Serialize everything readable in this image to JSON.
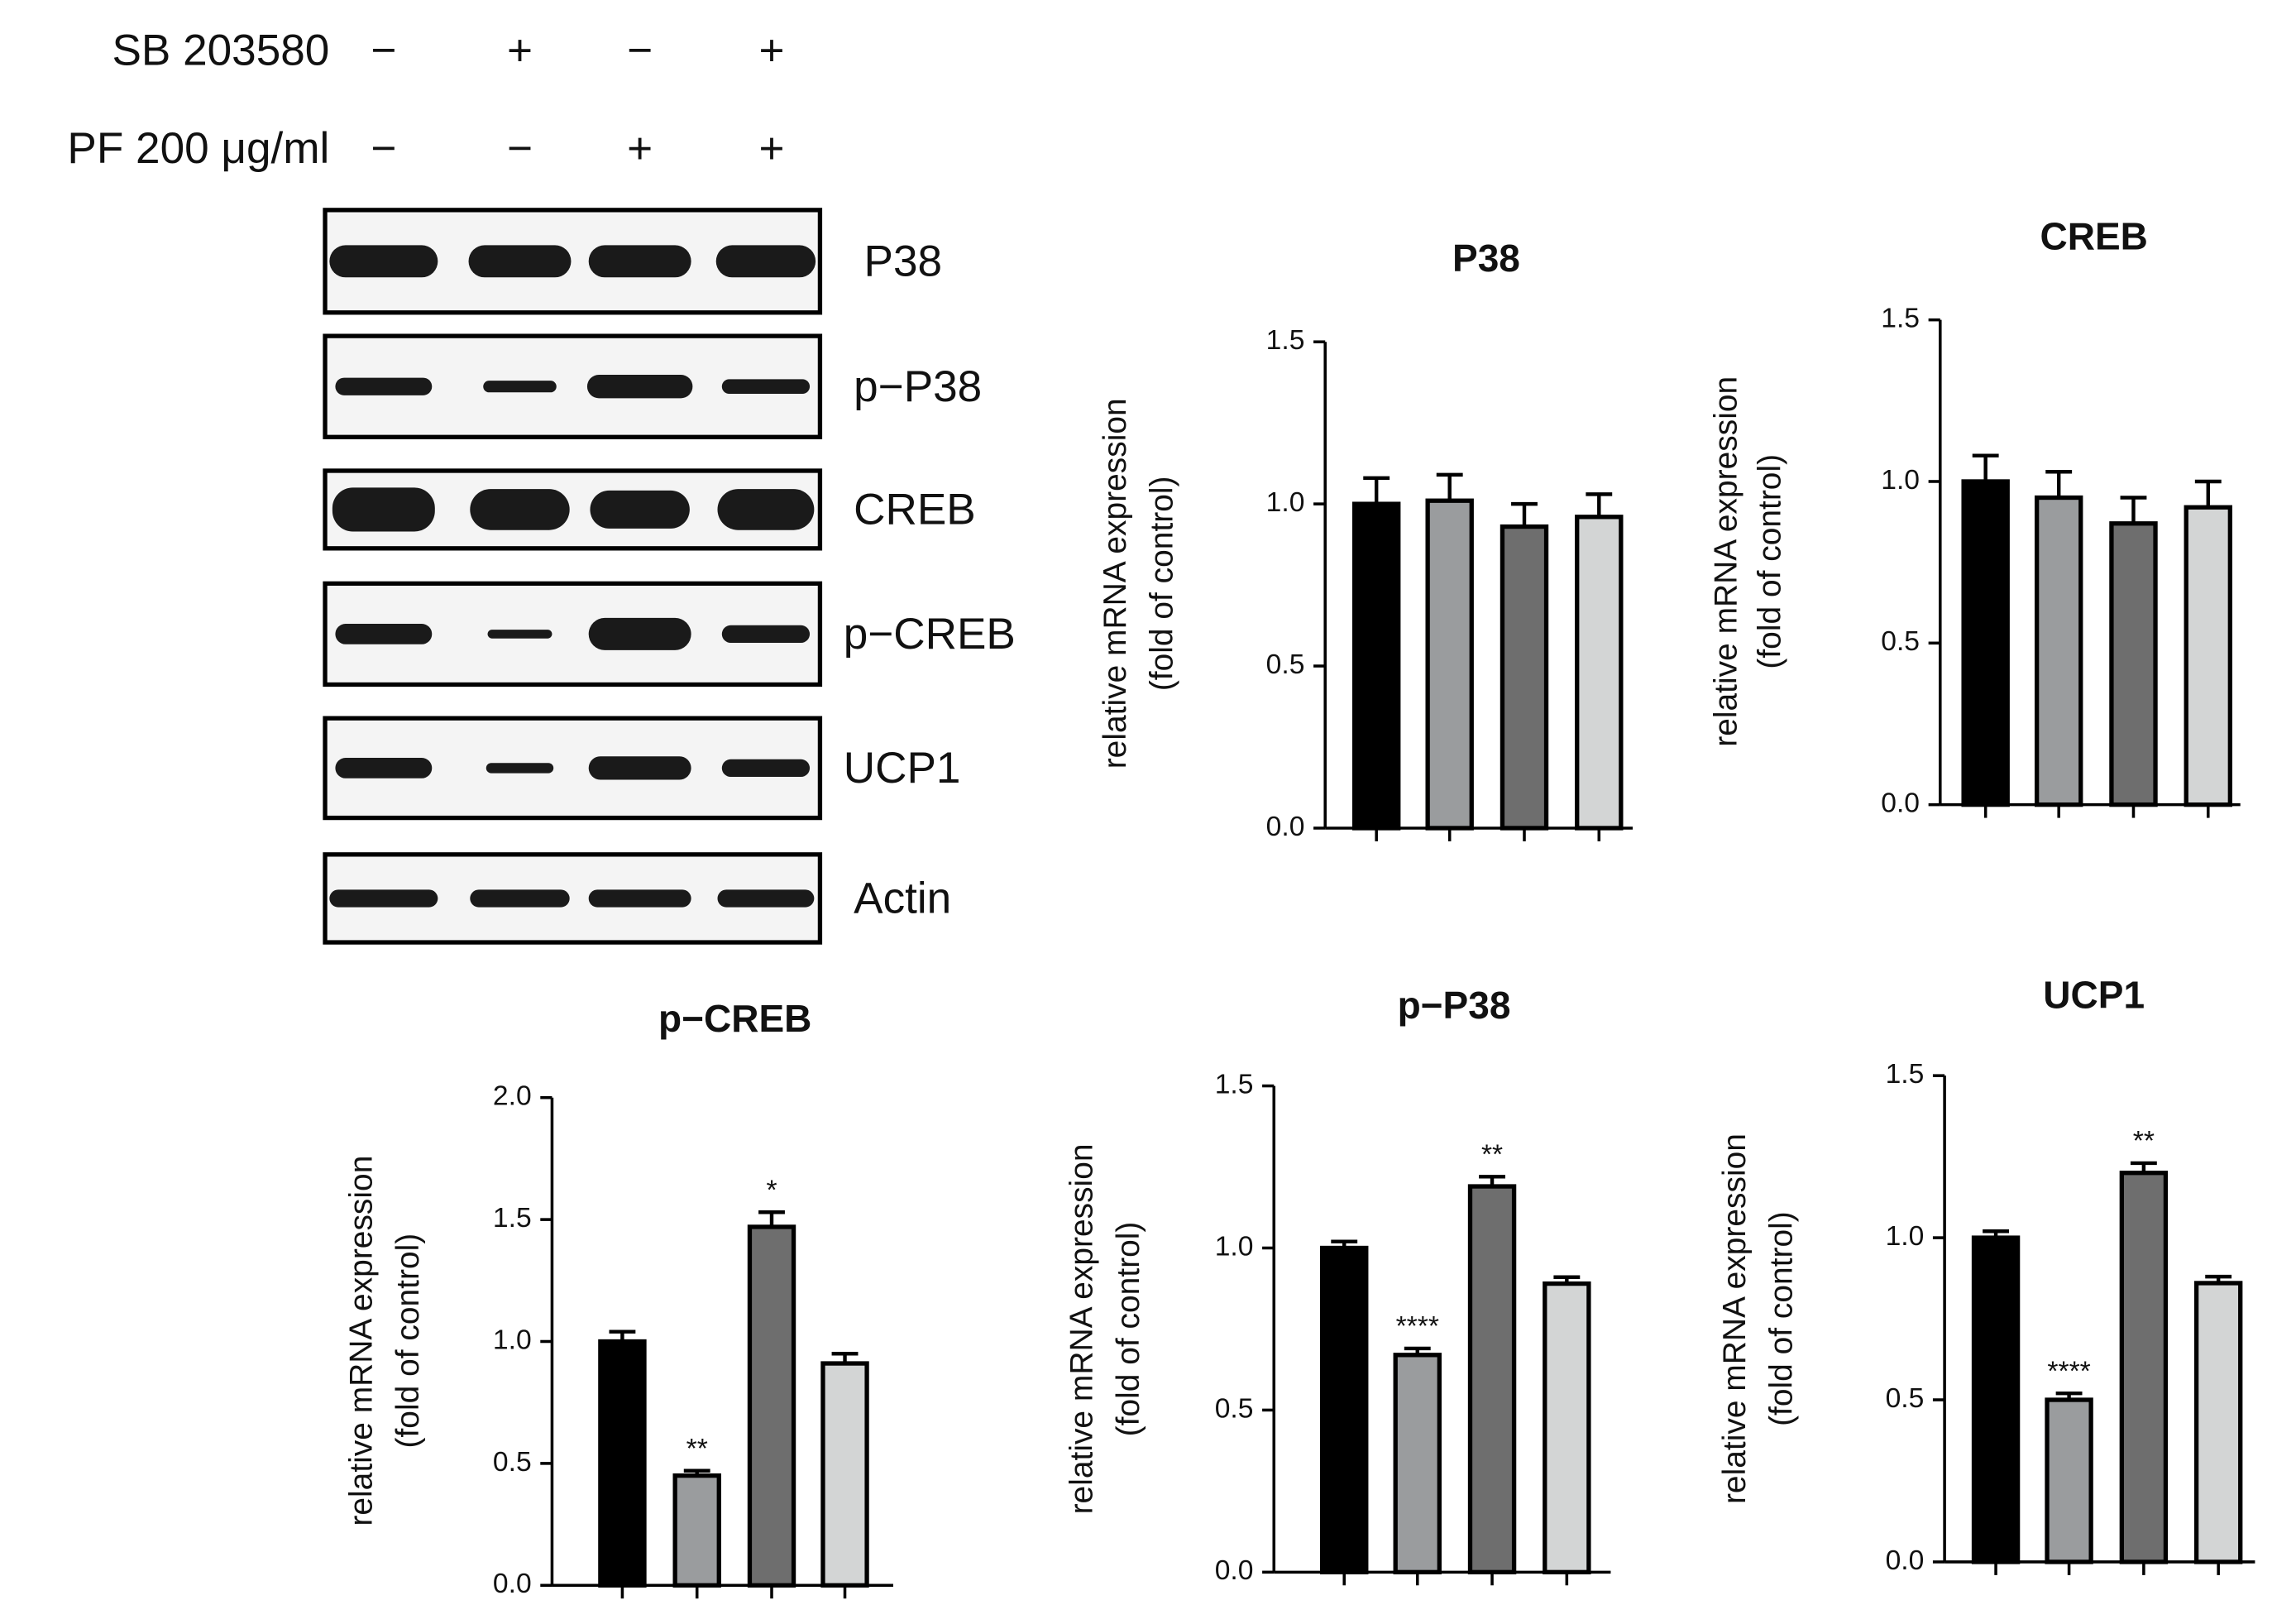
{
  "blot": {
    "treatments": [
      {
        "label": "SB 203580",
        "signs": [
          "−",
          "+",
          "−",
          "+"
        ]
      },
      {
        "label": "PF 200 μg/ml",
        "signs": [
          "−",
          "−",
          "+",
          "+"
        ]
      }
    ],
    "rows": [
      "P38",
      "p−P38",
      "CREB",
      "p−CREB",
      "UCP1",
      "Actin"
    ]
  },
  "chart_data": [
    {
      "type": "bar",
      "title": "P38",
      "ylabel": [
        "relative mRNA expression",
        "(fold of control)"
      ],
      "categories": [
        null,
        null,
        null,
        null
      ],
      "values": [
        1.0,
        1.01,
        0.93,
        0.96
      ],
      "errors": [
        0.08,
        0.08,
        0.07,
        0.07
      ],
      "annotations": [
        null,
        null,
        null,
        null
      ],
      "colors": [
        "#000000",
        "#9a9c9e",
        "#6e6e6e",
        "#d3d5d5"
      ],
      "ylim": [
        0,
        1.5
      ],
      "yticks": [
        {
          "value": 0,
          "label": "0.0"
        },
        {
          "value": 0.5,
          "label": "0.5"
        },
        {
          "value": 1,
          "label": "1.0"
        },
        {
          "value": 1.5,
          "label": "1.5"
        }
      ]
    },
    {
      "type": "bar",
      "title": "CREB",
      "ylabel": [
        "relative mRNA expression",
        "(fold of control)"
      ],
      "categories": [
        null,
        null,
        null,
        null
      ],
      "values": [
        1.0,
        0.95,
        0.87,
        0.92
      ],
      "errors": [
        0.08,
        0.08,
        0.08,
        0.08
      ],
      "annotations": [
        null,
        null,
        null,
        null
      ],
      "colors": [
        "#000000",
        "#9a9c9e",
        "#6e6e6e",
        "#d3d5d5"
      ],
      "ylim": [
        0,
        1.5
      ],
      "yticks": [
        {
          "value": 0,
          "label": "0.0"
        },
        {
          "value": 0.5,
          "label": "0.5"
        },
        {
          "value": 1,
          "label": "1.0"
        },
        {
          "value": 1.5,
          "label": "1.5"
        }
      ]
    },
    {
      "type": "bar",
      "title": "p−CREB",
      "ylabel": [
        "relative mRNA expression",
        "(fold of control)"
      ],
      "categories": [
        null,
        null,
        null,
        null
      ],
      "values": [
        1.0,
        0.45,
        1.47,
        0.91
      ],
      "errors": [
        0.04,
        0.02,
        0.06,
        0.04
      ],
      "annotations": [
        null,
        "**",
        "*",
        null
      ],
      "colors": [
        "#000000",
        "#9a9c9e",
        "#6e6e6e",
        "#d3d5d5"
      ],
      "ylim": [
        0,
        2
      ],
      "yticks": [
        {
          "value": 0,
          "label": "0.0"
        },
        {
          "value": 0.5,
          "label": "0.5"
        },
        {
          "value": 1,
          "label": "1.0"
        },
        {
          "value": 1.5,
          "label": "1.5"
        },
        {
          "value": 2,
          "label": "2.0"
        }
      ]
    },
    {
      "type": "bar",
      "title": "p−P38",
      "ylabel": [
        "relative mRNA expression",
        "(fold of control)"
      ],
      "categories": [
        null,
        null,
        null,
        null
      ],
      "values": [
        1.0,
        0.67,
        1.19,
        0.89
      ],
      "errors": [
        0.02,
        0.02,
        0.03,
        0.02
      ],
      "annotations": [
        null,
        "****",
        "**",
        null
      ],
      "colors": [
        "#000000",
        "#9a9c9e",
        "#6e6e6e",
        "#d3d5d5"
      ],
      "ylim": [
        0,
        1.5
      ],
      "yticks": [
        {
          "value": 0,
          "label": "0.0"
        },
        {
          "value": 0.5,
          "label": "0.5"
        },
        {
          "value": 1,
          "label": "1.0"
        },
        {
          "value": 1.5,
          "label": "1.5"
        }
      ]
    },
    {
      "type": "bar",
      "title": "UCP1",
      "ylabel": [
        "relative mRNA expression",
        "(fold of control)"
      ],
      "categories": [
        null,
        null,
        null,
        null
      ],
      "values": [
        1.0,
        0.5,
        1.2,
        0.86
      ],
      "errors": [
        0.02,
        0.02,
        0.03,
        0.02
      ],
      "annotations": [
        null,
        "****",
        "**",
        null
      ],
      "colors": [
        "#000000",
        "#9a9c9e",
        "#6e6e6e",
        "#d3d5d5"
      ],
      "ylim": [
        0,
        1.5
      ],
      "yticks": [
        {
          "value": 0,
          "label": "0.0"
        },
        {
          "value": 0.5,
          "label": "0.5"
        },
        {
          "value": 1,
          "label": "1.0"
        },
        {
          "value": 1.5,
          "label": "1.5"
        }
      ]
    }
  ]
}
